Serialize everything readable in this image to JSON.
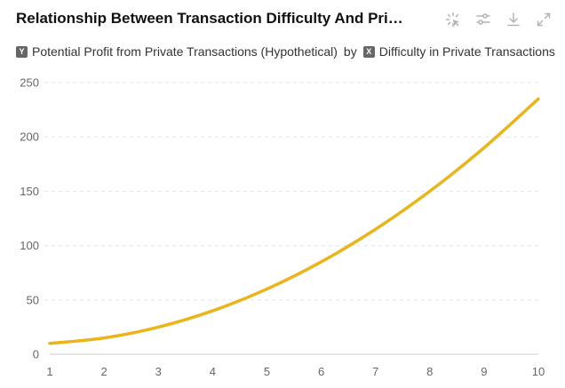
{
  "header": {
    "title": "Relationship Between Transaction Difficulty And Pri…",
    "subtitle": {
      "y_badge": "Y",
      "y_label": "Potential Profit from Private Transactions (Hypothetical)",
      "connector": "by",
      "x_badge": "X",
      "x_label": "Difficulty in Private Transactions"
    }
  },
  "toolbar": {
    "icons": [
      "magic-select-icon",
      "adjust-sliders-icon",
      "download-icon",
      "expand-icon"
    ]
  },
  "colors": {
    "line": "#EBB41A",
    "grid": "#e6e6e6",
    "axis": "#cccccc",
    "tick_text": "#666666",
    "icon": "#b3b3b3"
  },
  "chart_data": {
    "type": "line",
    "title": "Relationship Between Transaction Difficulty And Pri…",
    "xlabel": "Difficulty in Private Transactions",
    "ylabel": "Potential Profit from Private Transactions (Hypothetical)",
    "xlim": [
      1,
      10
    ],
    "ylim": [
      0,
      250
    ],
    "x_ticks": [
      1,
      2,
      3,
      4,
      5,
      6,
      7,
      8,
      9,
      10
    ],
    "y_ticks": [
      0,
      50,
      100,
      150,
      200,
      250
    ],
    "grid": true,
    "series": [
      {
        "x": [
          1,
          2,
          3,
          4,
          5,
          6,
          7,
          8,
          9,
          10
        ],
        "values": [
          10,
          15,
          25,
          40,
          60,
          85,
          115,
          150,
          190,
          235
        ]
      }
    ]
  }
}
